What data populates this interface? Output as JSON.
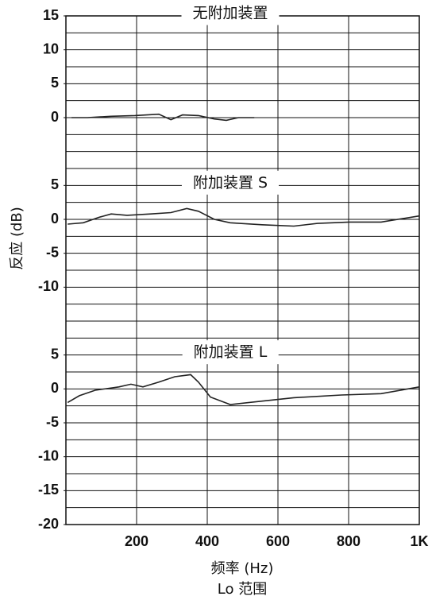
{
  "chart_data": [
    {
      "type": "line",
      "title": "无附加装置",
      "ylim": [
        -7.5,
        15
      ],
      "yticks": [
        15,
        10,
        5,
        0
      ],
      "ygrid": [
        -5,
        -2.5,
        0,
        2.5,
        5,
        7.5,
        10,
        12.5
      ],
      "series": [
        {
          "color": "#222222",
          "x": [
            16,
            61,
            128,
            195,
            263,
            297,
            330,
            375,
            420,
            454,
            488,
            533
          ],
          "values": [
            0,
            0,
            0.2,
            0.3,
            0.5,
            -0.3,
            0.4,
            0.3,
            -0.2,
            -0.4,
            0,
            0
          ]
        }
      ]
    },
    {
      "type": "line",
      "title": "附加装置 S",
      "ylabel": "反应 (dB)",
      "ylim": [
        -17.5,
        7.5
      ],
      "yticks": [
        5,
        0,
        -5,
        -10
      ],
      "ygrid": [
        -15,
        -12.5,
        -10,
        -7.5,
        -5,
        -2.5,
        0,
        2.5,
        5
      ],
      "series": [
        {
          "color": "#222222",
          "x": [
            5,
            49,
            94,
            128,
            173,
            240,
            297,
            342,
            375,
            420,
            465,
            555,
            645,
            712,
            802,
            892,
            1000
          ],
          "values": [
            -0.7,
            -0.5,
            0.3,
            0.8,
            0.6,
            0.8,
            1.0,
            1.6,
            1.2,
            0,
            -0.5,
            -0.8,
            -1.0,
            -0.6,
            -0.4,
            -0.4,
            0.5
          ]
        }
      ]
    },
    {
      "type": "line",
      "title": "附加装置 L",
      "ylim": [
        -20,
        7.5
      ],
      "yticks": [
        5,
        0,
        -5,
        -10,
        -15,
        -20
      ],
      "ygrid": [
        -17.5,
        -15,
        -12.5,
        -10,
        -7.5,
        -5,
        -2.5,
        0,
        2.5,
        5
      ],
      "xlim": [
        0,
        1000
      ],
      "xticks": [
        200,
        400,
        600,
        800,
        {
          "value": 1000,
          "label": "1K"
        }
      ],
      "xlabel": [
        "频率 (Hz)",
        "Lo 范围"
      ],
      "grid": true,
      "series": [
        {
          "color": "#222222",
          "x": [
            5,
            38,
            83,
            150,
            184,
            218,
            263,
            308,
            353,
            375,
            409,
            465,
            555,
            645,
            780,
            892,
            1000
          ],
          "values": [
            -2,
            -1,
            -0.2,
            0.3,
            0.7,
            0.3,
            1.0,
            1.8,
            2.1,
            1,
            -1.2,
            -2.3,
            -1.8,
            -1.3,
            -0.9,
            -0.7,
            0.3
          ]
        }
      ]
    }
  ]
}
